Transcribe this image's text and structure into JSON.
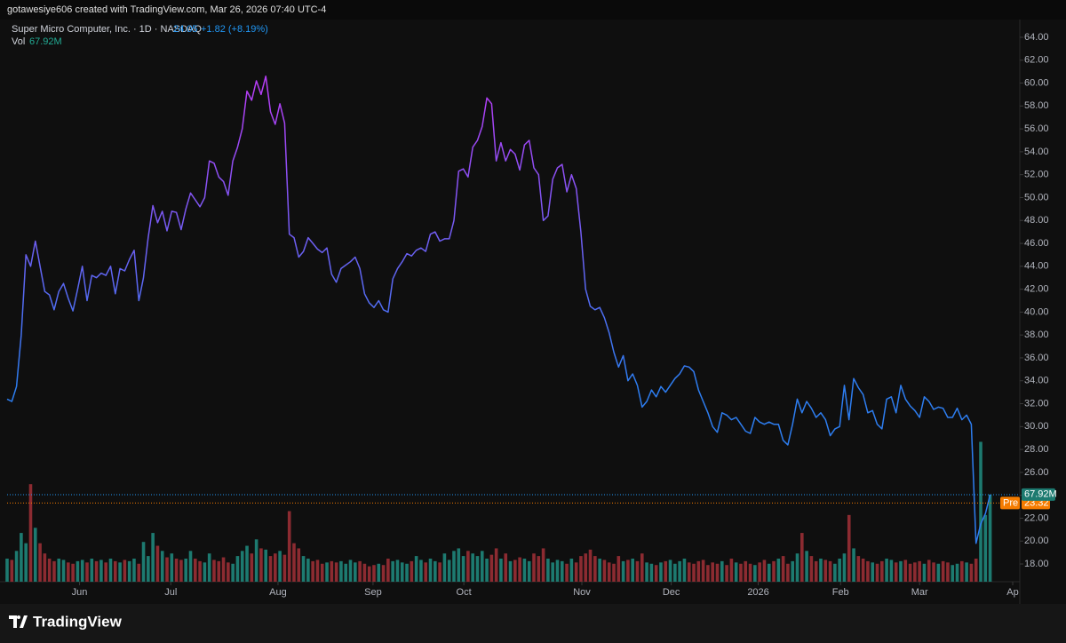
{
  "header": {
    "text": "gotawesiye606 created with TradingView.com, Mar 26, 2026 07:40 UTC-4"
  },
  "footer": {
    "brand": "TradingView"
  },
  "chart_data": {
    "type": "line",
    "title": "Super Micro Computer, Inc. · 1D · NASDAQ",
    "change": "+1.82 (+8.19%)",
    "series": [
      {
        "color": [
          "#b53df5",
          "#2d7df0"
        ],
        "values": [
          32.4,
          32.2,
          33.5,
          38,
          45,
          44,
          46.2,
          44,
          41.8,
          41.5,
          40.2,
          41.8,
          42.5,
          41.2,
          40.1,
          42,
          44,
          41,
          43.2,
          43,
          43.4,
          43.2,
          44,
          41.6,
          43.8,
          43.6,
          44.6,
          45.4,
          41,
          43,
          46.5,
          49.3,
          47.8,
          48.8,
          47.1,
          48.8,
          48.7,
          47.2,
          49,
          50.4,
          49.8,
          49.2,
          50,
          53.2,
          53,
          51.8,
          51.4,
          50.2,
          53.2,
          54.4,
          56,
          59.3,
          58.5,
          60.2,
          59,
          60.6,
          57.5,
          56.4,
          58.2,
          56.5,
          46.8,
          46.5,
          44.8,
          45.3,
          46.5,
          46,
          45.5,
          45.2,
          45.6,
          43.3,
          42.6,
          43.8,
          44.1,
          44.4,
          44.8,
          43.8,
          41.6,
          40.8,
          40.4,
          41,
          40.2,
          40,
          42.9,
          43.8,
          44.4,
          45.1,
          44.9,
          45.4,
          45.6,
          45.3,
          46.8,
          47,
          46.2,
          46.4,
          46.4,
          48,
          52.3,
          52.5,
          51.8,
          54.4,
          55,
          56.2,
          58.7,
          58.2,
          53.2,
          54.8,
          53.2,
          54.2,
          53.8,
          52.4,
          54.6,
          55,
          52.6,
          52,
          48,
          48.4,
          51.6,
          52.6,
          52.9,
          50.5,
          52,
          50.8,
          47,
          42,
          40.5,
          40.2,
          40.4,
          39.5,
          38.2,
          36.5,
          35.2,
          36.2,
          34,
          34.6,
          33.6,
          31.7,
          32.2,
          33.2,
          32.6,
          33.5,
          33,
          33.6,
          34.2,
          34.6,
          35.3,
          35.2,
          34.8,
          33.2,
          32.2,
          31.2,
          30,
          29.5,
          31.2,
          31,
          30.6,
          30.8,
          30.2,
          29.6,
          29.4,
          30.8,
          30.4,
          30.2,
          30.4,
          30.2,
          30.2,
          28.8,
          28.4,
          30.2,
          32.4,
          31.2,
          32.2,
          31.6,
          30.8,
          31.2,
          30.6,
          29.2,
          29.8,
          30,
          33.6,
          30.6,
          34.2,
          33.4,
          32.8,
          31.2,
          31.4,
          30.2,
          29.8,
          32.4,
          32.6,
          31.2,
          33.6,
          32.4,
          31.8,
          31.4,
          30.8,
          32.6,
          32.2,
          31.5,
          31.7,
          31.6,
          30.8,
          30.8,
          31.6,
          30.6,
          31,
          30.2,
          19.8,
          21.5,
          22.4,
          24.05
        ]
      }
    ],
    "volume": {
      "name": "Vol",
      "value_label": "67.92M",
      "ylim": [
        0,
        438
      ],
      "up_color": "#1d7a70",
      "down_color": "#8c2b31",
      "values": [
        18,
        17,
        24,
        38,
        30,
        76,
        42,
        30,
        22,
        18,
        16,
        18,
        17,
        15,
        14,
        16,
        17,
        15,
        18,
        16,
        17,
        15,
        18,
        16,
        15,
        17,
        16,
        18,
        14,
        31,
        20,
        38,
        28,
        24,
        19,
        22,
        18,
        17,
        18,
        24,
        18,
        16,
        15,
        22,
        17,
        16,
        19,
        15,
        14,
        20,
        24,
        28,
        22,
        33,
        26,
        25,
        20,
        22,
        24,
        21,
        55,
        30,
        26,
        20,
        18,
        16,
        17,
        14,
        15,
        16,
        15,
        16,
        14,
        17,
        15,
        16,
        14,
        12,
        13,
        14,
        13,
        18,
        16,
        17,
        15,
        14,
        16,
        20,
        17,
        15,
        18,
        16,
        15,
        22,
        17,
        24,
        26,
        20,
        24,
        22,
        20,
        24,
        18,
        21,
        26,
        18,
        22,
        16,
        17,
        19,
        18,
        16,
        22,
        20,
        26,
        18,
        15,
        17,
        16,
        14,
        18,
        15,
        20,
        22,
        25,
        20,
        18,
        17,
        15,
        14,
        20,
        16,
        17,
        18,
        16,
        22,
        15,
        14,
        13,
        15,
        16,
        17,
        14,
        16,
        18,
        15,
        14,
        16,
        17,
        13,
        15,
        14,
        16,
        13,
        18,
        15,
        14,
        16,
        14,
        13,
        15,
        17,
        14,
        16,
        18,
        20,
        14,
        16,
        22,
        38,
        24,
        20,
        16,
        18,
        17,
        16,
        14,
        18,
        22,
        52,
        26,
        20,
        18,
        16,
        15,
        14,
        16,
        18,
        17,
        15,
        16,
        17,
        14,
        15,
        16,
        14,
        17,
        15,
        14,
        16,
        15,
        13,
        14,
        16,
        15,
        14,
        18,
        109,
        52,
        67.92
      ]
    },
    "premarket": {
      "label": "Pre",
      "value": 23.32,
      "color": "#f57c00"
    },
    "last_color": "#2196f3",
    "xlim": [
      0,
      213.8
    ],
    "xticks": [
      {
        "value": 15.4,
        "label": "Jun"
      },
      {
        "value": 34.8,
        "label": "Jul"
      },
      {
        "value": 57.6,
        "label": "Aug"
      },
      {
        "value": 77.8,
        "label": "Sep"
      },
      {
        "value": 97.1,
        "label": "Oct"
      },
      {
        "value": 122.2,
        "label": "Nov"
      },
      {
        "value": 141.2,
        "label": "Dec"
      },
      {
        "value": 159.7,
        "label": "2026"
      },
      {
        "value": 177.2,
        "label": "Feb"
      },
      {
        "value": 194,
        "label": "Mar"
      },
      {
        "value": 213.8,
        "label": "Ap"
      }
    ],
    "ylim": [
      16.45,
      65.55
    ],
    "yticks": [
      {
        "value": 18,
        "label": "18.00"
      },
      {
        "value": 20,
        "label": "20.00"
      },
      {
        "value": 22,
        "label": "22.00"
      },
      {
        "value": 24,
        "label": "24.00"
      },
      {
        "value": 26,
        "label": "26.00"
      },
      {
        "value": 28,
        "label": "28.00"
      },
      {
        "value": 30,
        "label": "30.00"
      },
      {
        "value": 32,
        "label": "32.00"
      },
      {
        "value": 34,
        "label": "34.00"
      },
      {
        "value": 36,
        "label": "36.00"
      },
      {
        "value": 38,
        "label": "38.00"
      },
      {
        "value": 40,
        "label": "40.00"
      },
      {
        "value": 42,
        "label": "42.00"
      },
      {
        "value": 44,
        "label": "44.00"
      },
      {
        "value": 46,
        "label": "46.00"
      },
      {
        "value": 48,
        "label": "48.00"
      },
      {
        "value": 50,
        "label": "50.00"
      },
      {
        "value": 52,
        "label": "52.00"
      },
      {
        "value": 54,
        "label": "54.00"
      },
      {
        "value": 56,
        "label": "56.00"
      },
      {
        "value": 58,
        "label": "58.00"
      },
      {
        "value": 60,
        "label": "60.00"
      },
      {
        "value": 62,
        "label": "62.00"
      },
      {
        "value": 64,
        "label": "64.00"
      }
    ],
    "grid": false
  }
}
